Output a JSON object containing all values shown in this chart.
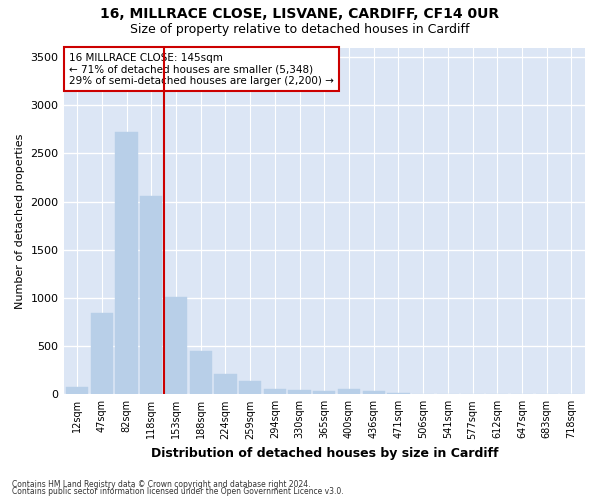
{
  "title1": "16, MILLRACE CLOSE, LISVANE, CARDIFF, CF14 0UR",
  "title2": "Size of property relative to detached houses in Cardiff",
  "xlabel": "Distribution of detached houses by size in Cardiff",
  "ylabel": "Number of detached properties",
  "categories": [
    "12sqm",
    "47sqm",
    "82sqm",
    "118sqm",
    "153sqm",
    "188sqm",
    "224sqm",
    "259sqm",
    "294sqm",
    "330sqm",
    "365sqm",
    "400sqm",
    "436sqm",
    "471sqm",
    "506sqm",
    "541sqm",
    "577sqm",
    "612sqm",
    "647sqm",
    "683sqm",
    "718sqm"
  ],
  "values": [
    75,
    840,
    2720,
    2060,
    1010,
    450,
    210,
    140,
    50,
    40,
    30,
    60,
    30,
    15,
    5,
    3,
    2,
    1,
    1,
    1,
    0
  ],
  "bar_color": "#b8cfe8",
  "bar_edgecolor": "#b8cfe8",
  "vline_x_index": 4,
  "vline_color": "#cc0000",
  "annotation_title": "16 MILLRACE CLOSE: 145sqm",
  "annotation_line1": "← 71% of detached houses are smaller (5,348)",
  "annotation_line2": "29% of semi-detached houses are larger (2,200) →",
  "annotation_box_color": "#cc0000",
  "annotation_facecolor": "white",
  "ylim": [
    0,
    3600
  ],
  "yticks": [
    0,
    500,
    1000,
    1500,
    2000,
    2500,
    3000,
    3500
  ],
  "footer1": "Contains HM Land Registry data © Crown copyright and database right 2024.",
  "footer2": "Contains public sector information licensed under the Open Government Licence v3.0.",
  "fig_bg_color": "#ffffff",
  "plot_bg_color": "#dce6f5",
  "grid_color": "#ffffff",
  "title1_fontsize": 10,
  "title2_fontsize": 9,
  "tick_fontsize": 7,
  "ylabel_fontsize": 8,
  "xlabel_fontsize": 9,
  "xlabel_fontweight": "bold"
}
